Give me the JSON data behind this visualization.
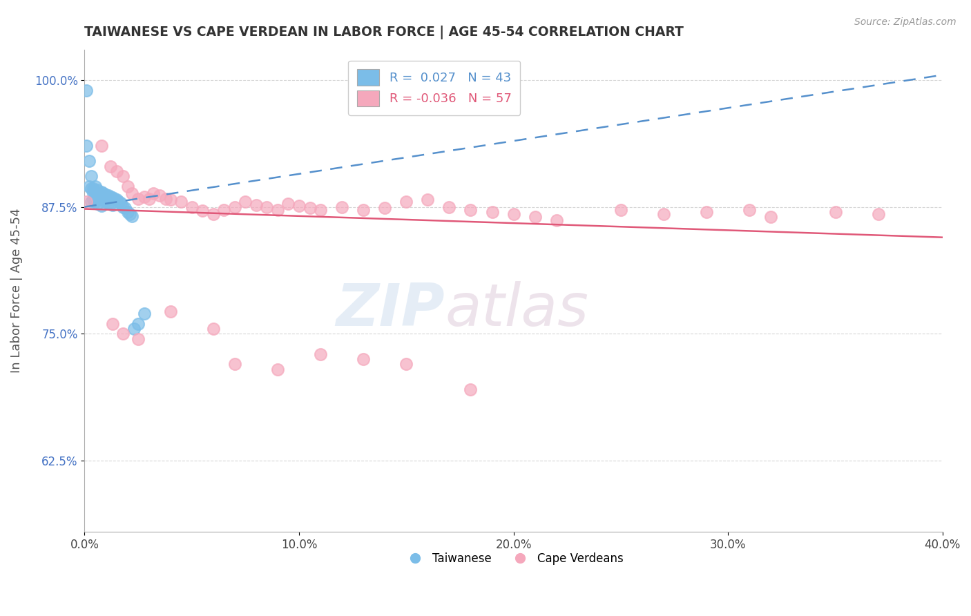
{
  "title": "TAIWANESE VS CAPE VERDEAN IN LABOR FORCE | AGE 45-54 CORRELATION CHART",
  "source": "Source: ZipAtlas.com",
  "ylabel": "In Labor Force | Age 45-54",
  "xmin": 0.0,
  "xmax": 0.4,
  "ymin": 0.555,
  "ymax": 1.03,
  "xticks": [
    0.0,
    0.1,
    0.2,
    0.3,
    0.4
  ],
  "xtick_labels": [
    "0.0%",
    "10.0%",
    "20.0%",
    "30.0%",
    "40.0%"
  ],
  "yticks": [
    0.625,
    0.75,
    0.875,
    1.0
  ],
  "ytick_labels": [
    "62.5%",
    "75.0%",
    "87.5%",
    "100.0%"
  ],
  "taiwanese_color": "#7bbde8",
  "cape_verdean_color": "#f5a8bc",
  "trend_taiwanese_color": "#5590cc",
  "trend_cape_verdean_color": "#e05878",
  "R_taiwanese": 0.027,
  "N_taiwanese": 43,
  "R_cape_verdean": -0.036,
  "N_cape_verdean": 57,
  "background_color": "#ffffff",
  "tw_trend_x0": 0.0,
  "tw_trend_y0": 0.875,
  "tw_trend_x1": 0.4,
  "tw_trend_y1": 1.005,
  "cv_trend_x0": 0.0,
  "cv_trend_y0": 0.873,
  "cv_trend_x1": 0.4,
  "cv_trend_y1": 0.845,
  "taiwanese_x": [
    0.001,
    0.001,
    0.002,
    0.002,
    0.003,
    0.003,
    0.003,
    0.004,
    0.004,
    0.004,
    0.005,
    0.005,
    0.005,
    0.006,
    0.006,
    0.006,
    0.007,
    0.007,
    0.008,
    0.008,
    0.008,
    0.009,
    0.009,
    0.01,
    0.01,
    0.011,
    0.011,
    0.012,
    0.012,
    0.013,
    0.013,
    0.014,
    0.015,
    0.016,
    0.017,
    0.018,
    0.019,
    0.02,
    0.021,
    0.022,
    0.023,
    0.025,
    0.028
  ],
  "taiwanese_y": [
    0.99,
    0.935,
    0.92,
    0.895,
    0.905,
    0.893,
    0.88,
    0.893,
    0.888,
    0.882,
    0.895,
    0.888,
    0.88,
    0.892,
    0.885,
    0.878,
    0.888,
    0.882,
    0.89,
    0.885,
    0.876,
    0.888,
    0.882,
    0.887,
    0.88,
    0.886,
    0.879,
    0.885,
    0.878,
    0.884,
    0.877,
    0.883,
    0.882,
    0.88,
    0.879,
    0.875,
    0.874,
    0.87,
    0.868,
    0.866,
    0.755,
    0.76,
    0.77
  ],
  "cape_verdean_x": [
    0.001,
    0.008,
    0.012,
    0.015,
    0.018,
    0.02,
    0.022,
    0.025,
    0.028,
    0.03,
    0.032,
    0.035,
    0.038,
    0.04,
    0.045,
    0.05,
    0.055,
    0.06,
    0.065,
    0.07,
    0.075,
    0.08,
    0.085,
    0.09,
    0.095,
    0.1,
    0.105,
    0.11,
    0.12,
    0.13,
    0.14,
    0.15,
    0.16,
    0.17,
    0.18,
    0.19,
    0.2,
    0.21,
    0.22,
    0.25,
    0.27,
    0.29,
    0.31,
    0.32,
    0.35,
    0.37,
    0.013,
    0.018,
    0.025,
    0.04,
    0.06,
    0.07,
    0.09,
    0.11,
    0.13,
    0.15,
    0.18
  ],
  "cape_verdean_y": [
    0.88,
    0.935,
    0.915,
    0.91,
    0.905,
    0.895,
    0.888,
    0.883,
    0.885,
    0.883,
    0.888,
    0.886,
    0.883,
    0.882,
    0.88,
    0.875,
    0.871,
    0.868,
    0.872,
    0.875,
    0.88,
    0.877,
    0.875,
    0.872,
    0.878,
    0.876,
    0.874,
    0.872,
    0.875,
    0.872,
    0.874,
    0.88,
    0.882,
    0.875,
    0.872,
    0.87,
    0.868,
    0.865,
    0.862,
    0.872,
    0.868,
    0.87,
    0.872,
    0.865,
    0.87,
    0.868,
    0.76,
    0.75,
    0.745,
    0.772,
    0.755,
    0.72,
    0.715,
    0.73,
    0.725,
    0.72,
    0.695
  ]
}
